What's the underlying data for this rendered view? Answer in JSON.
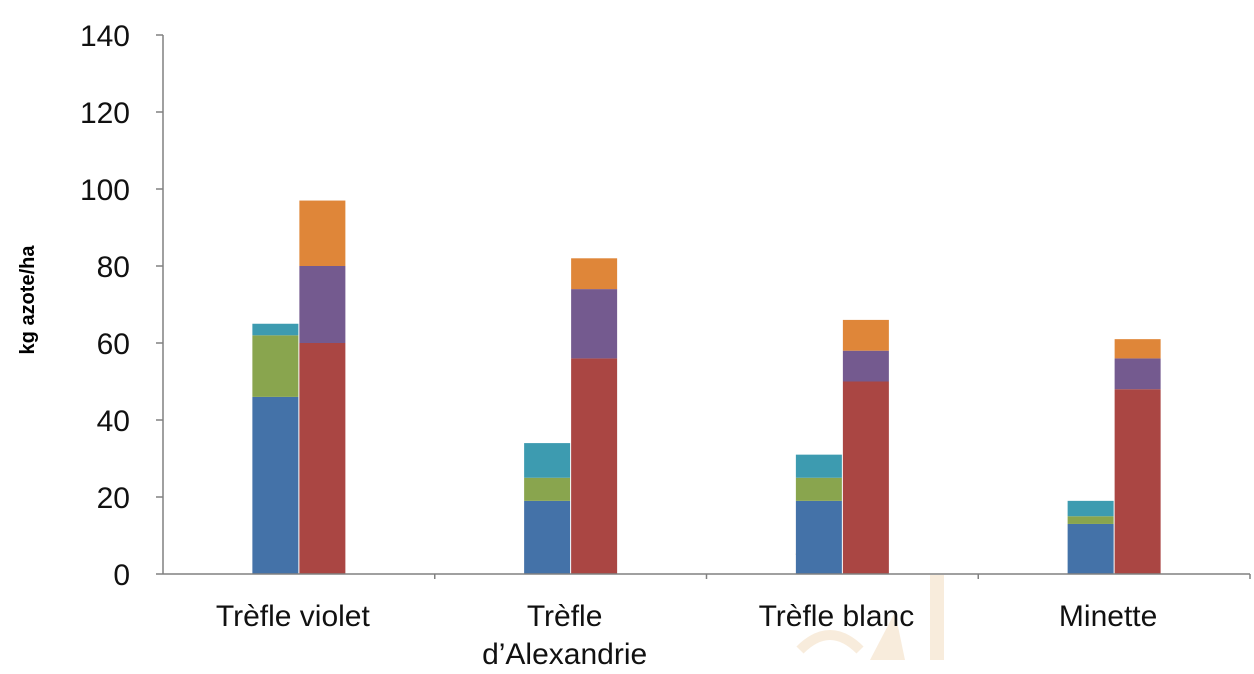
{
  "chart_data": {
    "type": "bar",
    "stacked": true,
    "ylabel": "kg azote/ha",
    "xlabel": "",
    "ylim": [
      0,
      140
    ],
    "yticks": [
      0,
      20,
      40,
      60,
      80,
      100,
      120,
      140
    ],
    "grid": false,
    "legend": "none",
    "categories": [
      {
        "lines": [
          "Trèfle violet"
        ]
      },
      {
        "lines": [
          "Trèfle",
          "d’Alexandrie"
        ]
      },
      {
        "lines": [
          "Trèfle blanc"
        ]
      },
      {
        "lines": [
          "Minette"
        ]
      }
    ],
    "stacks": [
      {
        "key": "left",
        "series": [
          {
            "color": "#4472a8",
            "values": [
              46,
              19,
              19,
              13
            ]
          },
          {
            "color": "#89a54e",
            "values": [
              16,
              6,
              6,
              2
            ]
          },
          {
            "color": "#3d9bb0",
            "values": [
              3,
              9,
              6,
              4
            ]
          }
        ]
      },
      {
        "key": "right",
        "series": [
          {
            "color": "#aa4643",
            "values": [
              60,
              56,
              50,
              48
            ]
          },
          {
            "color": "#745a8f",
            "values": [
              20,
              18,
              8,
              8
            ]
          },
          {
            "color": "#df8639",
            "values": [
              17,
              8,
              8,
              5
            ]
          }
        ]
      }
    ]
  },
  "watermark": {
    "color": "#f3dcc0"
  }
}
